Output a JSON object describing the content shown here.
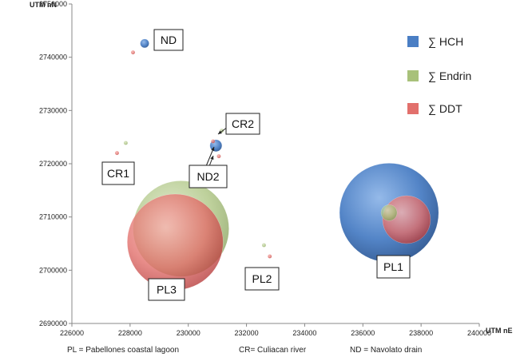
{
  "chart_data": {
    "type": "scatter",
    "subtype": "bubble",
    "title": "",
    "xlabel": "UTM nE",
    "ylabel": "UTM nN",
    "xlim": [
      226000,
      240000
    ],
    "ylim": [
      2690000,
      2750000
    ],
    "x_ticks": [
      "226000",
      "228000",
      "230000",
      "232000",
      "234000",
      "236000",
      "238000",
      "240000"
    ],
    "y_ticks": [
      "2690000",
      "2700000",
      "2710000",
      "2720000",
      "2730000",
      "2740000",
      "2750000"
    ],
    "grid": false,
    "legend_position": "right",
    "series": [
      {
        "name": "∑ HCH",
        "color": "#4a7ec4",
        "points": [
          {
            "x": 228500,
            "y": 2742600,
            "size": 0.055
          },
          {
            "x": 230950,
            "y": 2723400,
            "size": 0.075
          },
          {
            "x": 236900,
            "y": 2710800,
            "size": 0.62
          }
        ]
      },
      {
        "name": "∑ Endrin",
        "color": "#a8c17a",
        "points": [
          {
            "x": 227850,
            "y": 2723900,
            "size": 0.012
          },
          {
            "x": 231150,
            "y": 2726200,
            "size": 0.012
          },
          {
            "x": 232600,
            "y": 2704700,
            "size": 0.012
          },
          {
            "x": 236900,
            "y": 2710800,
            "size": 0.1
          },
          {
            "x": 229750,
            "y": 2707800,
            "size": 0.6
          }
        ]
      },
      {
        "name": "∑ DDT",
        "color": "#e2706c",
        "points": [
          {
            "x": 228100,
            "y": 2740900,
            "size": 0.025
          },
          {
            "x": 227550,
            "y": 2722000,
            "size": 0.025
          },
          {
            "x": 231050,
            "y": 2721400,
            "size": 0.025
          },
          {
            "x": 230850,
            "y": 2724200,
            "size": 0.025
          },
          {
            "x": 232800,
            "y": 2702600,
            "size": 0.025
          },
          {
            "x": 237500,
            "y": 2709500,
            "size": 0.3
          },
          {
            "x": 229550,
            "y": 2705300,
            "size": 0.6
          }
        ]
      }
    ],
    "site_labels": [
      {
        "text": "ND"
      },
      {
        "text": "CR2"
      },
      {
        "text": "CR1"
      },
      {
        "text": "ND2"
      },
      {
        "text": "PL1"
      },
      {
        "text": "PL2"
      },
      {
        "text": "PL3"
      }
    ],
    "footnotes": [
      "PL = Pabellones coastal lagoon",
      "CR= Culiacan river",
      "ND = Navolato drain"
    ]
  }
}
